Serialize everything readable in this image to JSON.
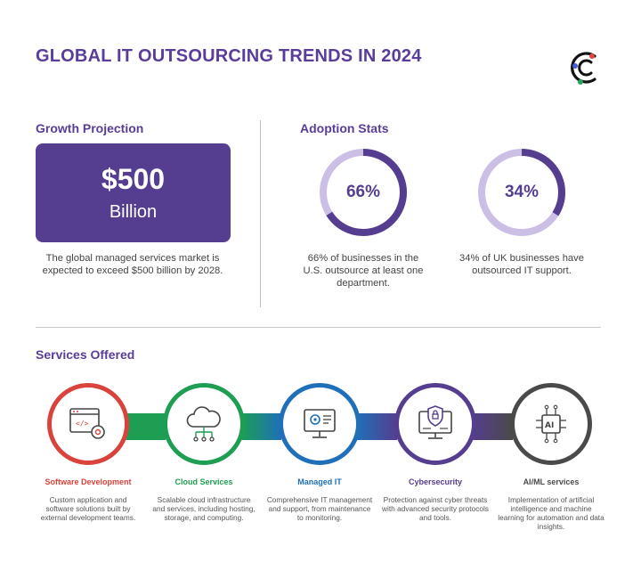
{
  "title": "GLOBAL IT OUTSOURCING TRENDS IN 2024",
  "growth": {
    "heading": "Growth Projection",
    "amount": "$500",
    "unit": "Billion",
    "caption": "The global managed services market is expected to exceed $500 billion by 2028."
  },
  "adoption": {
    "heading": "Adoption Stats",
    "stats": [
      {
        "label": "66%",
        "value": 66,
        "caption": "66% of businesses in the U.S. outsource at least one department."
      },
      {
        "label": "34%",
        "value": 34,
        "caption": "34% of UK businesses have outsourced IT support."
      }
    ],
    "colors": {
      "progress": "#553d8f",
      "track": "#cbbfe6"
    }
  },
  "services": {
    "heading": "Services Offered",
    "items": [
      {
        "title": "Software Development",
        "desc": "Custom application and software solutions built by external development teams.",
        "color": "#d9433b",
        "icon": "code-settings-icon"
      },
      {
        "title": "Cloud Services",
        "desc": "Scalable cloud infrastructure and services, including hosting, storage, and computing.",
        "color": "#1d9e52",
        "icon": "cloud-network-icon"
      },
      {
        "title": "Managed IT",
        "desc": "Comprehensive IT management and support, from maintenance to monitoring.",
        "color": "#1f70b8",
        "icon": "monitor-gear-icon"
      },
      {
        "title": "Cybersecurity",
        "desc": "Protection against cyber threats with advanced security protocols and tools.",
        "color": "#553d8f",
        "icon": "shield-monitor-icon"
      },
      {
        "title": "AI/ML services",
        "desc": "Implementation of artificial intelligence and machine learning for automation and data insights.",
        "color": "#4a4a4a",
        "icon": "ai-chip-icon"
      }
    ]
  },
  "colors": {
    "brand": "#5a3d9a",
    "box": "#553d8f"
  }
}
